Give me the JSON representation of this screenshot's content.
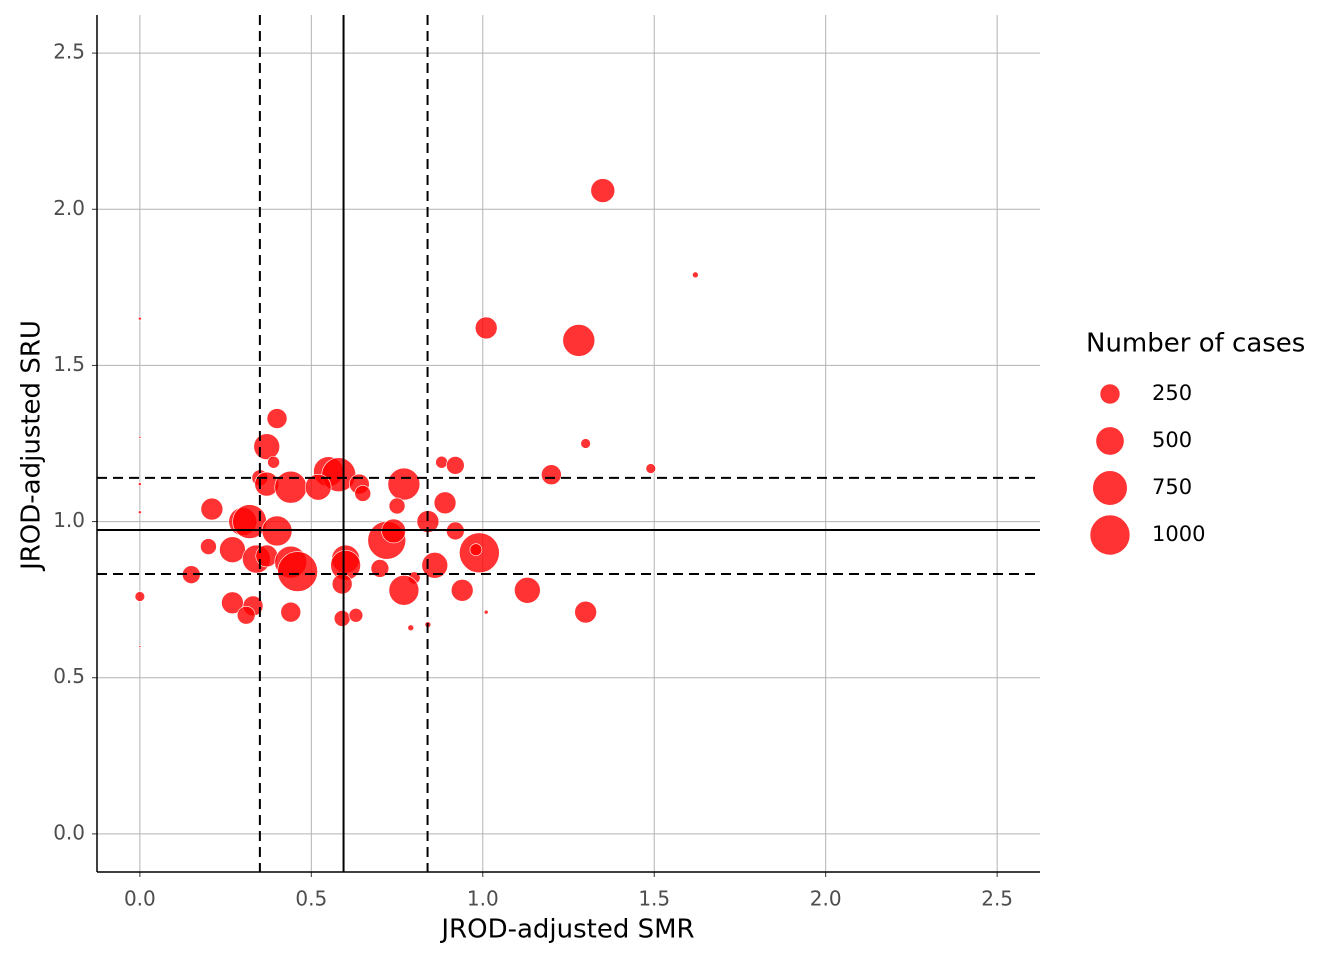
{
  "chart_data": {
    "type": "scatter",
    "xlabel": "JROD-adjusted SMR",
    "ylabel": "JROD-adjusted SRU",
    "xlim": [
      -0.125,
      2.625
    ],
    "ylim": [
      -0.122,
      2.622
    ],
    "xticks": [
      {
        "value": 0,
        "label": "0.0"
      },
      0.5,
      {
        "value": 1,
        "label": "1.0"
      },
      1.5,
      {
        "value": 2,
        "label": "2.0"
      },
      2.5
    ],
    "yticks": [
      {
        "value": 0,
        "label": "0.0"
      },
      0.5,
      {
        "value": 1,
        "label": "1.0"
      },
      1.5,
      {
        "value": 2,
        "label": "2.0"
      },
      2.5
    ],
    "grid": true,
    "color": "#ff0000",
    "vlines": [
      {
        "value": 0.594,
        "style": "solid"
      },
      {
        "value": 0.35,
        "style": "dashed"
      },
      {
        "value": 0.839,
        "style": "dashed"
      }
    ],
    "hlines": [
      {
        "value": 0.973,
        "style": "solid"
      },
      {
        "value": 1.14,
        "style": "dashed"
      },
      {
        "value": 0.832,
        "style": "dashed"
      }
    ],
    "size_legend": {
      "title": "Number of cases",
      "values": [
        250,
        500,
        750,
        1000
      ]
    },
    "x": [
      1.35,
      1.62,
      0.0,
      1.01,
      1.28,
      0.0,
      0.4,
      0.37,
      1.3,
      0.39,
      0.88,
      0.92,
      1.49,
      1.2,
      0.35,
      0.55,
      0.58,
      0.37,
      0.44,
      0.52,
      0.64,
      0.65,
      0.77,
      0.0,
      0.0,
      0.89,
      0.21,
      0.75,
      0.84,
      0.3,
      0.32,
      0.4,
      0.92,
      0.72,
      0.74,
      0.2,
      0.27,
      0.34,
      0.37,
      0.44,
      0.46,
      0.6,
      0.6,
      0.99,
      0.98,
      0.86,
      0.15,
      0.7,
      0.59,
      0.8,
      0.77,
      0.94,
      1.13,
      0.0,
      0.27,
      0.33,
      0.31,
      0.44,
      1.3,
      1.01,
      0.59,
      0.63,
      0.79,
      0.84,
      0.0
    ],
    "y": [
      2.06,
      1.79,
      1.65,
      1.62,
      1.58,
      1.27,
      1.33,
      1.24,
      1.25,
      1.19,
      1.19,
      1.18,
      1.17,
      1.15,
      1.14,
      1.16,
      1.15,
      1.12,
      1.11,
      1.11,
      1.12,
      1.09,
      1.12,
      1.12,
      1.03,
      1.06,
      1.04,
      1.05,
      1.0,
      1.0,
      1.0,
      0.97,
      0.97,
      0.94,
      0.97,
      0.92,
      0.91,
      0.88,
      0.89,
      0.87,
      0.84,
      0.88,
      0.86,
      0.9,
      0.91,
      0.86,
      0.83,
      0.85,
      0.8,
      0.82,
      0.78,
      0.78,
      0.78,
      0.76,
      0.74,
      0.73,
      0.7,
      0.71,
      0.71,
      0.71,
      0.69,
      0.7,
      0.66,
      0.67,
      0.6
    ],
    "size": [
      360,
      22,
      6,
      300,
      640,
      3,
      250,
      420,
      60,
      90,
      90,
      200,
      60,
      250,
      160,
      560,
      720,
      360,
      640,
      420,
      250,
      160,
      640,
      6,
      6,
      300,
      300,
      160,
      300,
      490,
      720,
      560,
      200,
      900,
      360,
      160,
      420,
      490,
      300,
      640,
      1000,
      490,
      560,
      1000,
      90,
      420,
      200,
      200,
      250,
      90,
      560,
      300,
      420,
      60,
      300,
      250,
      200,
      250,
      300,
      10,
      160,
      120,
      22,
      22,
      3
    ]
  }
}
